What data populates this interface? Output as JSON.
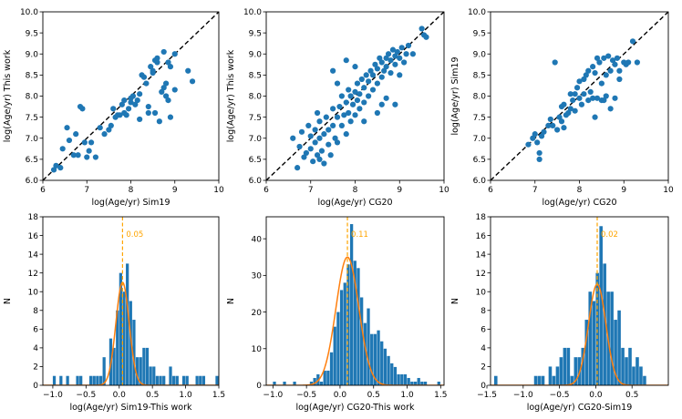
{
  "colors": {
    "points": "#1f77b4",
    "gauss": "#ff7f0e",
    "median_line": "#ffa500",
    "diag": "#000000"
  },
  "chart_data": [
    {
      "type": "scatter",
      "xlabel": "log(Age/yr) Sim19",
      "ylabel": "log(Age/yr) This work",
      "xlim": [
        6,
        10
      ],
      "ylim": [
        6,
        10
      ],
      "xticks": [
        "6",
        "7",
        "8",
        "9",
        "10"
      ],
      "yticks": [
        "6.0",
        "6.5",
        "7.0",
        "7.5",
        "8.0",
        "8.5",
        "9.0",
        "9.5",
        "10.0"
      ],
      "diagonal": true,
      "points": [
        [
          6.25,
          6.25
        ],
        [
          6.3,
          6.35
        ],
        [
          6.4,
          6.3
        ],
        [
          6.45,
          6.75
        ],
        [
          6.55,
          7.25
        ],
        [
          6.6,
          6.95
        ],
        [
          6.7,
          6.6
        ],
        [
          6.75,
          7.1
        ],
        [
          6.8,
          6.6
        ],
        [
          6.85,
          7.75
        ],
        [
          6.9,
          7.7
        ],
        [
          6.95,
          6.9
        ],
        [
          7.0,
          6.55
        ],
        [
          7.05,
          6.7
        ],
        [
          7.1,
          6.9
        ],
        [
          7.2,
          6.55
        ],
        [
          7.3,
          7.25
        ],
        [
          7.4,
          7.1
        ],
        [
          7.5,
          7.2
        ],
        [
          7.55,
          7.3
        ],
        [
          7.6,
          7.7
        ],
        [
          7.65,
          7.5
        ],
        [
          7.7,
          7.55
        ],
        [
          7.75,
          7.55
        ],
        [
          7.8,
          7.8
        ],
        [
          7.85,
          7.6
        ],
        [
          7.9,
          7.55
        ],
        [
          7.95,
          7.7
        ],
        [
          8.0,
          7.95
        ],
        [
          8.0,
          7.85
        ],
        [
          8.05,
          8.0
        ],
        [
          8.1,
          7.8
        ],
        [
          8.15,
          7.9
        ],
        [
          8.2,
          8.05
        ],
        [
          8.25,
          8.5
        ],
        [
          8.3,
          8.45
        ],
        [
          8.35,
          8.3
        ],
        [
          8.4,
          7.6
        ],
        [
          8.4,
          7.75
        ],
        [
          8.45,
          8.7
        ],
        [
          8.5,
          8.6
        ],
        [
          8.5,
          8.55
        ],
        [
          8.55,
          8.85
        ],
        [
          8.6,
          8.9
        ],
        [
          8.6,
          8.8
        ],
        [
          8.65,
          7.4
        ],
        [
          8.7,
          8.1
        ],
        [
          8.75,
          8.2
        ],
        [
          8.75,
          9.05
        ],
        [
          8.8,
          8.3
        ],
        [
          8.8,
          8.0
        ],
        [
          8.85,
          8.8
        ],
        [
          8.85,
          7.9
        ],
        [
          8.9,
          8.7
        ],
        [
          8.9,
          7.5
        ],
        [
          9.0,
          9.0
        ],
        [
          9.0,
          8.15
        ],
        [
          9.3,
          8.6
        ],
        [
          9.4,
          8.35
        ],
        [
          8.2,
          7.45
        ],
        [
          7.85,
          7.9
        ],
        [
          8.55,
          7.6
        ]
      ]
    },
    {
      "type": "scatter",
      "xlabel": "log(Age/yr) CG20",
      "ylabel": "log(Age/yr) This work",
      "xlim": [
        6,
        10
      ],
      "ylim": [
        6,
        10
      ],
      "xticks": [
        "6",
        "7",
        "8",
        "9",
        "10"
      ],
      "yticks": [
        "6.0",
        "6.5",
        "7.0",
        "7.5",
        "8.0",
        "8.5",
        "9.0",
        "9.5",
        "10.0"
      ],
      "diagonal": true,
      "points": [
        [
          6.6,
          7.0
        ],
        [
          6.7,
          6.3
        ],
        [
          6.75,
          6.8
        ],
        [
          6.8,
          7.15
        ],
        [
          6.85,
          6.55
        ],
        [
          6.9,
          6.65
        ],
        [
          6.95,
          7.3
        ],
        [
          7.0,
          6.75
        ],
        [
          7.0,
          7.05
        ],
        [
          7.05,
          6.45
        ],
        [
          7.1,
          7.2
        ],
        [
          7.1,
          6.9
        ],
        [
          7.15,
          6.6
        ],
        [
          7.2,
          7.0
        ],
        [
          7.2,
          7.4
        ],
        [
          7.25,
          6.7
        ],
        [
          7.3,
          7.1
        ],
        [
          7.3,
          6.4
        ],
        [
          7.35,
          7.5
        ],
        [
          7.4,
          6.85
        ],
        [
          7.4,
          7.2
        ],
        [
          7.45,
          6.6
        ],
        [
          7.5,
          7.3
        ],
        [
          7.5,
          7.7
        ],
        [
          7.55,
          7.0
        ],
        [
          7.6,
          7.5
        ],
        [
          7.6,
          6.9
        ],
        [
          7.65,
          7.75
        ],
        [
          7.7,
          7.3
        ],
        [
          7.7,
          8.0
        ],
        [
          7.75,
          7.55
        ],
        [
          7.8,
          7.85
        ],
        [
          7.8,
          7.1
        ],
        [
          7.85,
          7.6
        ],
        [
          7.9,
          8.0
        ],
        [
          7.9,
          7.4
        ],
        [
          7.95,
          7.8
        ],
        [
          8.0,
          8.1
        ],
        [
          8.0,
          7.55
        ],
        [
          8.05,
          7.9
        ],
        [
          8.05,
          8.3
        ],
        [
          8.1,
          7.7
        ],
        [
          8.1,
          8.05
        ],
        [
          8.15,
          8.4
        ],
        [
          8.2,
          7.85
        ],
        [
          8.2,
          8.2
        ],
        [
          8.25,
          8.5
        ],
        [
          8.3,
          8.0
        ],
        [
          8.3,
          8.35
        ],
        [
          8.35,
          8.6
        ],
        [
          8.4,
          8.15
        ],
        [
          8.4,
          8.5
        ],
        [
          8.45,
          8.75
        ],
        [
          8.5,
          8.3
        ],
        [
          8.5,
          8.65
        ],
        [
          8.55,
          8.9
        ],
        [
          8.6,
          8.45
        ],
        [
          8.6,
          8.8
        ],
        [
          8.65,
          8.6
        ],
        [
          8.7,
          8.9
        ],
        [
          8.7,
          8.7
        ],
        [
          8.75,
          9.0
        ],
        [
          8.8,
          8.55
        ],
        [
          8.8,
          8.85
        ],
        [
          8.85,
          9.1
        ],
        [
          8.9,
          8.75
        ],
        [
          8.9,
          8.95
        ],
        [
          8.95,
          9.05
        ],
        [
          9.0,
          8.9
        ],
        [
          9.05,
          9.15
        ],
        [
          9.1,
          8.8
        ],
        [
          9.15,
          9.0
        ],
        [
          9.2,
          9.2
        ],
        [
          9.3,
          9.0
        ],
        [
          9.5,
          9.6
        ],
        [
          9.55,
          9.45
        ],
        [
          9.6,
          9.4
        ],
        [
          7.5,
          8.6
        ],
        [
          7.8,
          8.85
        ],
        [
          7.85,
          8.15
        ],
        [
          8.5,
          7.6
        ],
        [
          8.6,
          7.8
        ],
        [
          8.7,
          7.95
        ],
        [
          8.9,
          7.8
        ],
        [
          8.2,
          7.4
        ],
        [
          7.2,
          6.5
        ],
        [
          7.15,
          7.6
        ],
        [
          7.6,
          8.3
        ],
        [
          8.0,
          8.7
        ],
        [
          9.0,
          8.5
        ]
      ]
    },
    {
      "type": "scatter",
      "xlabel": "log(Age/yr) CG20",
      "ylabel": "log(Age/yr) Sim19",
      "xlim": [
        6,
        10
      ],
      "ylim": [
        6,
        10
      ],
      "xticks": [
        "6",
        "7",
        "8",
        "9",
        "10"
      ],
      "yticks": [
        "6.0",
        "6.5",
        "7.0",
        "7.5",
        "8.0",
        "8.5",
        "9.0",
        "9.5",
        "10.0"
      ],
      "diagonal": true,
      "points": [
        [
          6.85,
          6.85
        ],
        [
          6.95,
          7.0
        ],
        [
          7.0,
          7.1
        ],
        [
          7.05,
          6.9
        ],
        [
          7.1,
          6.5
        ],
        [
          7.1,
          6.65
        ],
        [
          7.15,
          7.05
        ],
        [
          7.2,
          7.15
        ],
        [
          7.3,
          7.3
        ],
        [
          7.35,
          7.45
        ],
        [
          7.4,
          7.3
        ],
        [
          7.45,
          8.8
        ],
        [
          7.5,
          7.2
        ],
        [
          7.55,
          7.5
        ],
        [
          7.6,
          7.75
        ],
        [
          7.6,
          7.4
        ],
        [
          7.65,
          7.8
        ],
        [
          7.7,
          7.55
        ],
        [
          7.75,
          7.6
        ],
        [
          7.8,
          7.7
        ],
        [
          7.8,
          8.05
        ],
        [
          7.85,
          7.9
        ],
        [
          7.9,
          8.05
        ],
        [
          7.9,
          7.65
        ],
        [
          7.95,
          8.2
        ],
        [
          8.0,
          7.95
        ],
        [
          8.0,
          8.35
        ],
        [
          8.05,
          7.8
        ],
        [
          8.1,
          8.4
        ],
        [
          8.1,
          8.05
        ],
        [
          8.15,
          8.5
        ],
        [
          8.2,
          7.9
        ],
        [
          8.2,
          8.6
        ],
        [
          8.25,
          8.1
        ],
        [
          8.3,
          8.7
        ],
        [
          8.3,
          7.95
        ],
        [
          8.35,
          8.55
        ],
        [
          8.4,
          8.9
        ],
        [
          8.4,
          7.95
        ],
        [
          8.45,
          8.8
        ],
        [
          8.5,
          8.3
        ],
        [
          8.5,
          7.9
        ],
        [
          8.55,
          8.9
        ],
        [
          8.6,
          8.0
        ],
        [
          8.6,
          8.5
        ],
        [
          8.65,
          8.95
        ],
        [
          8.7,
          8.6
        ],
        [
          8.7,
          7.7
        ],
        [
          8.75,
          8.85
        ],
        [
          8.8,
          8.75
        ],
        [
          8.8,
          7.95
        ],
        [
          8.85,
          8.9
        ],
        [
          8.9,
          8.6
        ],
        [
          8.9,
          8.4
        ],
        [
          9.0,
          8.8
        ],
        [
          9.05,
          8.75
        ],
        [
          9.1,
          8.8
        ],
        [
          9.2,
          9.3
        ],
        [
          9.3,
          8.8
        ],
        [
          7.65,
          7.25
        ],
        [
          8.35,
          7.5
        ],
        [
          8.55,
          7.9
        ]
      ]
    },
    {
      "type": "histogram",
      "xlabel": "log(Age/yr) Sim19-This work",
      "ylabel": "N",
      "xlim": [
        -1.15,
        1.5
      ],
      "ylim": [
        0,
        18
      ],
      "xticks": [
        -1.0,
        -0.5,
        0.0,
        0.5,
        1.0,
        1.5
      ],
      "xticklabels": [
        "−1.0",
        "−0.5",
        "0.0",
        "0.5",
        "1.0",
        "1.5"
      ],
      "yticks": [
        0,
        2,
        4,
        6,
        8,
        10,
        12,
        14,
        16,
        18
      ],
      "bin_start": -1.0,
      "bin_width": 0.05,
      "counts": [
        1,
        0,
        1,
        0,
        1,
        0,
        0,
        1,
        1,
        0,
        0,
        1,
        1,
        1,
        1,
        3,
        0,
        5,
        4,
        8,
        12,
        10,
        13,
        9,
        7,
        3,
        3,
        4,
        4,
        2,
        2,
        1,
        1,
        1,
        0,
        2,
        1,
        1,
        0,
        1,
        1,
        0,
        0,
        1,
        1,
        1,
        0,
        0,
        0,
        1
      ],
      "median": 0.05,
      "median_label": "0.05",
      "gaussian": {
        "mu": 0.05,
        "sigma": 0.1,
        "amp": 11
      }
    },
    {
      "type": "histogram",
      "xlabel": "log(Age/yr) CG20-This work",
      "ylabel": "N",
      "xlim": [
        -1.1,
        1.55
      ],
      "ylim": [
        0,
        46
      ],
      "xticks": [
        -1.0,
        -0.5,
        0.0,
        0.5,
        1.0,
        1.5
      ],
      "xticklabels": [
        "−1.0",
        "−0.5",
        "0.0",
        "0.5",
        "1.0",
        "1.5"
      ],
      "yticks": [
        0,
        10,
        20,
        30,
        40
      ],
      "bin_start": -1.05,
      "bin_width": 0.05,
      "counts": [
        0,
        1,
        0,
        0,
        1,
        0,
        0,
        1,
        0,
        0,
        0,
        0,
        1,
        2,
        3,
        1,
        4,
        4,
        9,
        16,
        20,
        26,
        28,
        33,
        44,
        34,
        32,
        24,
        17,
        21,
        14,
        14,
        15,
        12,
        10,
        8,
        6,
        5,
        3,
        3,
        3,
        2,
        1,
        1,
        2,
        1,
        1,
        0,
        0,
        0,
        1
      ],
      "median": 0.11,
      "median_label": "0.11",
      "gaussian": {
        "mu": 0.11,
        "sigma": 0.17,
        "amp": 35
      }
    },
    {
      "type": "histogram",
      "xlabel": "log(Age/yr) CG20-Sim19",
      "ylabel": "N",
      "xlim": [
        -1.45,
        1.0
      ],
      "ylim": [
        0,
        18
      ],
      "xticks": [
        -1.5,
        -1.0,
        -0.5,
        0.0,
        0.5
      ],
      "xticklabels": [
        "−1.5",
        "−1.0",
        "−0.5",
        "0.0",
        "0.5"
      ],
      "yticks": [
        0,
        2,
        4,
        6,
        8,
        10,
        12,
        14,
        16,
        18
      ],
      "bin_start": -1.4,
      "bin_width": 0.05,
      "counts": [
        1,
        0,
        0,
        0,
        0,
        0,
        0,
        0,
        0,
        0,
        0,
        1,
        1,
        1,
        0,
        2,
        1,
        2,
        3,
        4,
        4,
        1,
        3,
        3,
        4,
        7,
        10,
        9,
        12,
        17,
        13,
        10,
        10,
        7,
        8,
        4,
        3,
        4,
        2,
        3,
        2,
        1,
        0,
        0,
        0,
        0
      ],
      "median": 0.02,
      "median_label": "0.02",
      "gaussian": {
        "mu": 0.02,
        "sigma": 0.12,
        "amp": 10.8
      }
    }
  ]
}
